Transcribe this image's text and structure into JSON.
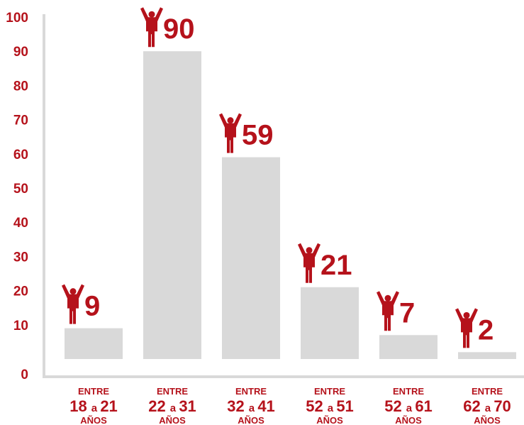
{
  "colors": {
    "accent": "#b5121b",
    "bar": "#d9d9d9",
    "axis": "#d9d9d9"
  },
  "chart_data": {
    "type": "bar",
    "title": "",
    "xlabel": "",
    "ylabel": "",
    "ylim": [
      0,
      100
    ],
    "yticks": [
      "0",
      "10",
      "20",
      "30",
      "40",
      "50",
      "60",
      "70",
      "80",
      "90",
      "100"
    ],
    "categories": [
      {
        "top": "ENTRE",
        "from": "18",
        "a": "a",
        "to": "21",
        "bottom": "AÑOS"
      },
      {
        "top": "ENTRE",
        "from": "22",
        "a": "a",
        "to": "31",
        "bottom": "AÑOS"
      },
      {
        "top": "ENTRE",
        "from": "32",
        "a": "a",
        "to": "41",
        "bottom": "AÑOS"
      },
      {
        "top": "ENTRE",
        "from": "52",
        "a": "a",
        "to": "51",
        "bottom": "AÑOS"
      },
      {
        "top": "ENTRE",
        "from": "52",
        "a": "a",
        "to": "61",
        "bottom": "AÑOS"
      },
      {
        "top": "ENTRE",
        "from": "62",
        "a": "a",
        "to": "70",
        "bottom": "AÑOS"
      }
    ],
    "values": [
      9,
      90,
      59,
      21,
      7,
      2
    ],
    "value_labels": [
      "9",
      "90",
      "59",
      "21",
      "7",
      "2"
    ],
    "marker_icon": "person-arms-raised-icon",
    "grid": false,
    "legend": "none"
  }
}
